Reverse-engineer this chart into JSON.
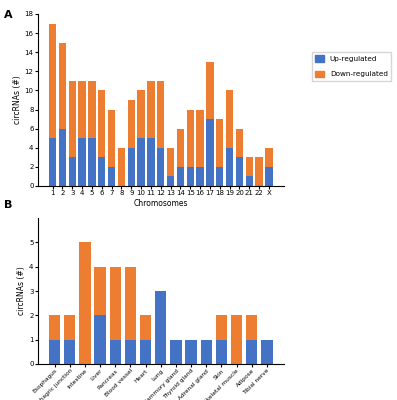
{
  "chart_A": {
    "chromosomes": [
      "1",
      "2",
      "3",
      "4",
      "5",
      "6",
      "7",
      "8",
      "9",
      "10",
      "11",
      "12",
      "13",
      "14",
      "15",
      "16",
      "17",
      "18",
      "19",
      "20",
      "21",
      "22",
      "X"
    ],
    "up_regulated": [
      5,
      6,
      3,
      5,
      5,
      3,
      2,
      0,
      4,
      5,
      5,
      4,
      1,
      2,
      2,
      2,
      7,
      2,
      4,
      3,
      1,
      0,
      2
    ],
    "down_regulated": [
      12,
      9,
      8,
      6,
      6,
      7,
      6,
      4,
      5,
      5,
      6,
      7,
      3,
      4,
      6,
      6,
      6,
      5,
      6,
      3,
      2,
      3,
      2
    ],
    "ylabel": "circRNAs (#)",
    "xlabel": "Chromosomes",
    "ylim": [
      0,
      18
    ],
    "yticks": [
      0,
      2,
      4,
      6,
      8,
      10,
      12,
      14,
      16,
      18
    ]
  },
  "chart_B": {
    "tissues": [
      "Esophagus",
      "Gastroesophagric junction",
      "Intestine",
      "Liver",
      "Pancreas",
      "Blood vessel",
      "Heart",
      "Lung",
      "Mammory gland",
      "Thyroid gland",
      "Adrenal gland",
      "Skin",
      "Skeletal muscle",
      "Adipose",
      "Tibial nerve"
    ],
    "up_regulated": [
      1,
      1,
      0,
      2,
      1,
      1,
      1,
      3,
      1,
      1,
      1,
      1,
      0,
      1,
      1
    ],
    "down_regulated": [
      1,
      1,
      5,
      2,
      3,
      3,
      1,
      0,
      0,
      0,
      0,
      1,
      2,
      1,
      0
    ],
    "ylabel": "circRNAs (#)",
    "xlabel": "",
    "ylim": [
      0,
      6
    ],
    "yticks": [
      0,
      1,
      2,
      3,
      4,
      5
    ]
  },
  "up_color": "#4472c4",
  "down_color": "#ed7d31",
  "label_fontsize": 5.5,
  "tick_fontsize": 5.0
}
